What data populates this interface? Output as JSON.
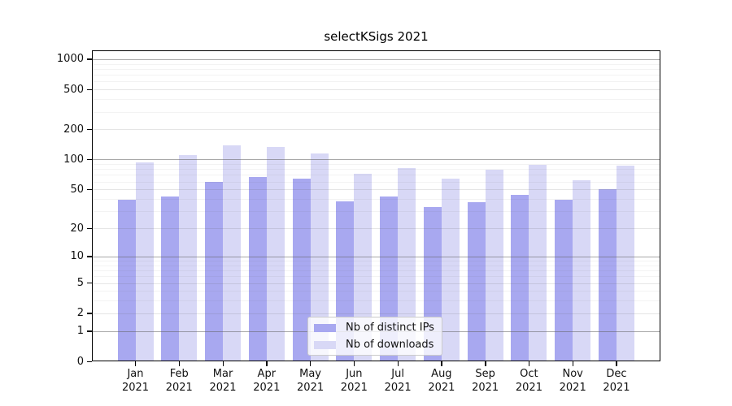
{
  "title": "selectKSigs 2021",
  "chart_data": {
    "type": "bar",
    "title": "selectKSigs 2021",
    "categories": [
      "Jan",
      "Feb",
      "Mar",
      "Apr",
      "May",
      "Jun",
      "Jul",
      "Aug",
      "Sep",
      "Oct",
      "Nov",
      "Dec"
    ],
    "x_tick_year": "2021",
    "series": [
      {
        "name": "Nb of distinct IPs",
        "color": "#a8a8f0",
        "values": [
          39,
          42,
          60,
          67,
          64,
          38,
          42,
          33,
          37,
          44,
          39,
          50
        ]
      },
      {
        "name": "Nb of downloads",
        "color": "#d8d8f6",
        "values": [
          94,
          111,
          140,
          134,
          115,
          72,
          82,
          64,
          79,
          88,
          62,
          87
        ]
      }
    ],
    "yscale": "log10(1+y)",
    "yticks": [
      0,
      1,
      2,
      5,
      10,
      20,
      50,
      100,
      200,
      500,
      1000
    ],
    "ylim": [
      0,
      1100
    ],
    "xlabel": "",
    "ylabel": "",
    "grid": "on",
    "legend_position": "bottom-center"
  }
}
